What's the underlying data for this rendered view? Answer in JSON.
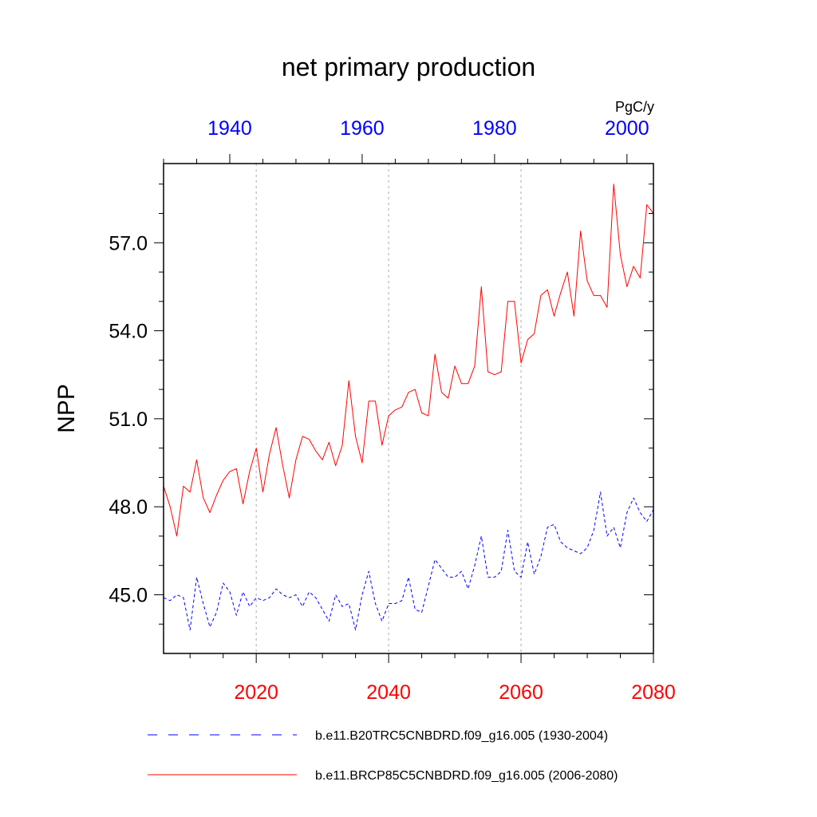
{
  "chart_data": {
    "type": "line",
    "title": "net primary production",
    "units": "PgC/y",
    "ylabel": "NPP",
    "ylim": [
      43,
      59.7
    ],
    "yticks": [
      "45.0",
      "48.0",
      "51.0",
      "54.0",
      "57.0"
    ],
    "bottom_axis": {
      "range": [
        2006,
        2080
      ],
      "ticks": [
        "2020",
        "2040",
        "2060",
        "2080"
      ],
      "color": "#ff0000"
    },
    "top_axis": {
      "range": [
        1930,
        2004
      ],
      "ticks": [
        "1940",
        "1960",
        "1980",
        "2000"
      ],
      "color": "#0000ff"
    },
    "grid": "vertical dotted at 2020, 2040, 2060",
    "legend_position": "bottom",
    "series": [
      {
        "name": "b.e11.B20TRC5CNBDRD.f09_g16.005 (1930-2004)",
        "color": "#0000ff",
        "style": "dashed",
        "axis": "top",
        "x": [
          1930,
          1931,
          1932,
          1933,
          1934,
          1935,
          1936,
          1937,
          1938,
          1939,
          1940,
          1941,
          1942,
          1943,
          1944,
          1945,
          1946,
          1947,
          1948,
          1949,
          1950,
          1951,
          1952,
          1953,
          1954,
          1955,
          1956,
          1957,
          1958,
          1959,
          1960,
          1961,
          1962,
          1963,
          1964,
          1965,
          1966,
          1967,
          1968,
          1969,
          1970,
          1971,
          1972,
          1973,
          1974,
          1975,
          1976,
          1977,
          1978,
          1979,
          1980,
          1981,
          1982,
          1983,
          1984,
          1985,
          1986,
          1987,
          1988,
          1989,
          1990,
          1991,
          1992,
          1993,
          1994,
          1995,
          1996,
          1997,
          1998,
          1999,
          2000,
          2001,
          2002,
          2003,
          2004
        ],
        "values": [
          44.9,
          44.8,
          45.0,
          44.9,
          43.8,
          45.6,
          44.7,
          43.9,
          44.4,
          45.4,
          45.1,
          44.3,
          45.1,
          44.6,
          44.9,
          44.8,
          44.9,
          45.2,
          45.0,
          44.9,
          45.0,
          44.6,
          45.1,
          44.9,
          44.5,
          44.1,
          45.0,
          44.6,
          44.7,
          43.8,
          45.0,
          45.8,
          44.7,
          44.1,
          44.7,
          44.7,
          44.8,
          45.6,
          44.5,
          44.4,
          45.3,
          46.2,
          45.9,
          45.6,
          45.6,
          45.8,
          45.2,
          46.0,
          47.0,
          45.6,
          45.6,
          45.8,
          47.2,
          45.8,
          45.6,
          46.8,
          45.7,
          46.3,
          47.3,
          47.4,
          46.8,
          46.6,
          46.5,
          46.4,
          46.6,
          47.2,
          48.5,
          47.0,
          47.3,
          46.6,
          47.8,
          48.3,
          47.8,
          47.5,
          47.9
        ]
      },
      {
        "name": "b.e11.BRCP85C5CNBDRD.f09_g16.005 (2006-2080)",
        "color": "#ff0000",
        "style": "solid",
        "axis": "bottom",
        "x": [
          2006,
          2007,
          2008,
          2009,
          2010,
          2011,
          2012,
          2013,
          2014,
          2015,
          2016,
          2017,
          2018,
          2019,
          2020,
          2021,
          2022,
          2023,
          2024,
          2025,
          2026,
          2027,
          2028,
          2029,
          2030,
          2031,
          2032,
          2033,
          2034,
          2035,
          2036,
          2037,
          2038,
          2039,
          2040,
          2041,
          2042,
          2043,
          2044,
          2045,
          2046,
          2047,
          2048,
          2049,
          2050,
          2051,
          2052,
          2053,
          2054,
          2055,
          2056,
          2057,
          2058,
          2059,
          2060,
          2061,
          2062,
          2063,
          2064,
          2065,
          2066,
          2067,
          2068,
          2069,
          2070,
          2071,
          2072,
          2073,
          2074,
          2075,
          2076,
          2077,
          2078,
          2079,
          2080
        ],
        "values": [
          48.7,
          48.0,
          47.0,
          48.7,
          48.5,
          49.6,
          48.3,
          47.8,
          48.4,
          48.9,
          49.2,
          49.3,
          48.1,
          49.2,
          50.0,
          48.5,
          49.8,
          50.7,
          49.4,
          48.3,
          49.6,
          50.4,
          50.3,
          49.9,
          49.6,
          50.2,
          49.4,
          50.1,
          52.3,
          50.4,
          49.5,
          51.6,
          51.6,
          50.1,
          51.1,
          51.3,
          51.4,
          51.9,
          52.0,
          51.2,
          51.1,
          53.2,
          51.9,
          51.7,
          52.8,
          52.2,
          52.2,
          52.8,
          55.5,
          52.6,
          52.5,
          52.6,
          55.0,
          55.0,
          52.9,
          53.7,
          53.9,
          55.2,
          55.4,
          54.5,
          55.3,
          56.0,
          54.5,
          57.4,
          55.7,
          55.2,
          55.2,
          54.8,
          59.0,
          56.6,
          55.5,
          56.2,
          55.8,
          58.3,
          58.0
        ]
      }
    ]
  }
}
